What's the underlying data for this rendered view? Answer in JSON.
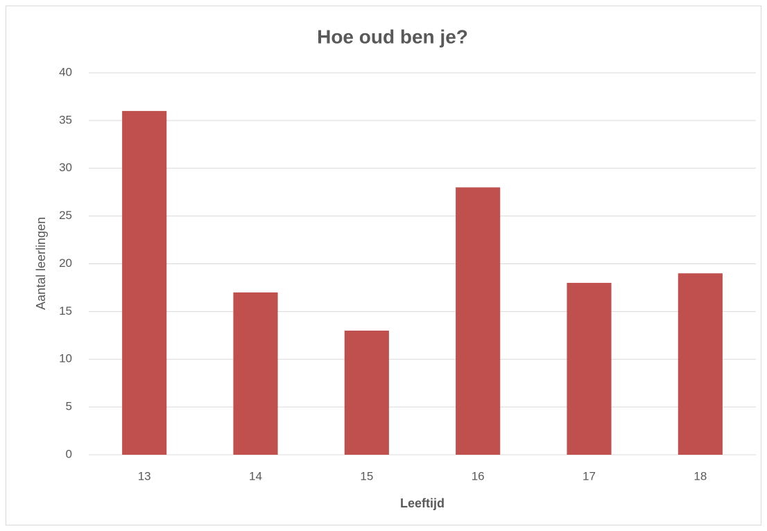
{
  "chart_data": {
    "type": "bar",
    "title": "Hoe oud ben je?",
    "xlabel": "Leeftijd",
    "ylabel": "Aantal leerlingen",
    "categories": [
      "13",
      "14",
      "15",
      "16",
      "17",
      "18"
    ],
    "values": [
      36,
      17,
      13,
      28,
      18,
      19
    ],
    "color": "#c0504d",
    "ylim": [
      0,
      40
    ],
    "yticks": [
      0,
      5,
      10,
      15,
      20,
      25,
      30,
      35,
      40
    ],
    "grid": true
  }
}
